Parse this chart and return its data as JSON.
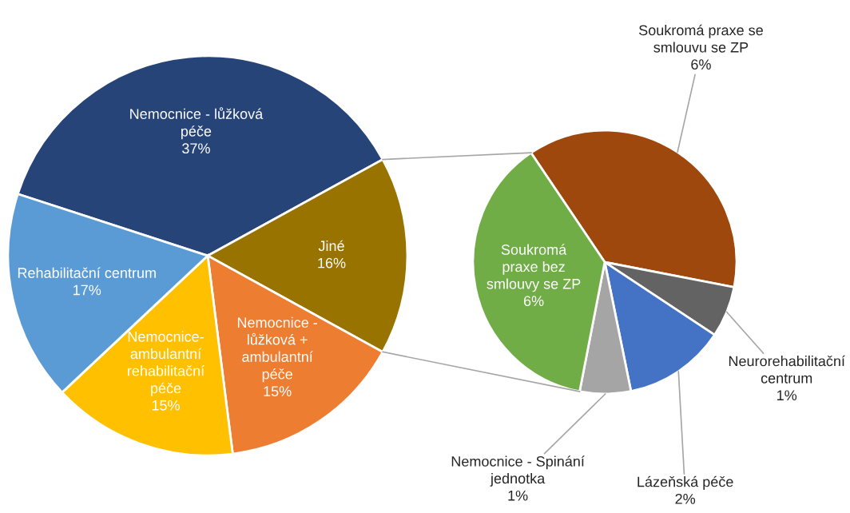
{
  "chart_data": [
    {
      "type": "pie",
      "categories": [
        "Nemocnice - lůžková péče",
        "Jiné",
        "Nemocnice - lůžková + ambulantní péče",
        "Nemocnice-ambulantní rehabilitační péče",
        "Rehabilitační centrum"
      ],
      "values": [
        37,
        16,
        15,
        15,
        17
      ],
      "colors": [
        "#264478",
        "#997300",
        "#ed7d31",
        "#ffc000",
        "#5b9bd5"
      ],
      "value_labels": [
        "37%",
        "16%",
        "15%",
        "15%",
        "17%"
      ]
    },
    {
      "type": "pie",
      "categories": [
        "Soukromá praxe se smlouvu se ZP",
        "Neurorehabilitační centrum",
        "Lázeňská péče",
        "Nemocnice - Spinání jednotka",
        "Soukromá praxe bez smlouvy se ZP"
      ],
      "values": [
        6,
        1,
        2,
        1,
        6
      ],
      "colors": [
        "#9e480e",
        "#636363",
        "#4472c4",
        "#a5a5a5",
        "#70ad47"
      ],
      "value_labels": [
        "6%",
        "1%",
        "2%",
        "1%",
        "6%"
      ]
    }
  ]
}
